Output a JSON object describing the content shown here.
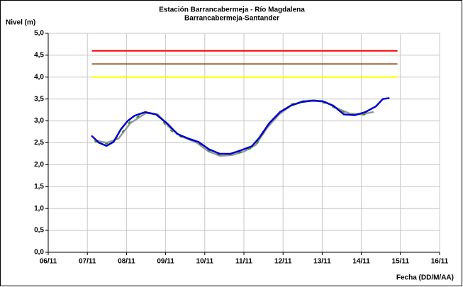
{
  "chart_data": {
    "type": "line",
    "title": [
      "Estación Barrancabermeja - Río Magdalena",
      "Barrancabermeja-Santander"
    ],
    "y_label": "Nivel (m)",
    "x_label": "Fecha (DD/M/AA)",
    "xlim": [
      0,
      10
    ],
    "xticks": [
      {
        "value": 0,
        "label": "06/11"
      },
      {
        "value": 1,
        "label": "07/11"
      },
      {
        "value": 2,
        "label": "08/11"
      },
      {
        "value": 3,
        "label": "09/11"
      },
      {
        "value": 4,
        "label": "10/11"
      },
      {
        "value": 5,
        "label": "11/11"
      },
      {
        "value": 6,
        "label": "12/11"
      },
      {
        "value": 7,
        "label": "13/11"
      },
      {
        "value": 8,
        "label": "14/11"
      },
      {
        "value": 9,
        "label": "15/11"
      },
      {
        "value": 10,
        "label": "16/11"
      }
    ],
    "ylim": [
      0,
      5
    ],
    "yticks": [
      {
        "value": 0,
        "label": "0,0"
      },
      {
        "value": 0.5,
        "label": "0,5"
      },
      {
        "value": 1,
        "label": "1,0"
      },
      {
        "value": 1.5,
        "label": "1,5"
      },
      {
        "value": 2,
        "label": "2,0"
      },
      {
        "value": 2.5,
        "label": "2,5"
      },
      {
        "value": 3,
        "label": "3,0"
      },
      {
        "value": 3.5,
        "label": "3,5"
      },
      {
        "value": 4,
        "label": "4,0"
      },
      {
        "value": 4.5,
        "label": "4,5"
      },
      {
        "value": 5,
        "label": "5,0"
      }
    ],
    "grid": true,
    "series": [
      {
        "color": "#ff0000",
        "x": [
          1.13,
          8.91
        ],
        "values": [
          4.6,
          4.6
        ]
      },
      {
        "color": "#996633",
        "x": [
          1.13,
          8.91
        ],
        "values": [
          4.3,
          4.3
        ]
      },
      {
        "color": "#ffff00",
        "x": [
          1.13,
          8.91
        ],
        "values": [
          4.0,
          4.0
        ]
      },
      {
        "color": "#999999",
        "width": 2.5,
        "x": [
          1.2,
          1.5,
          1.8,
          2.1,
          2.5,
          2.8,
          3.1,
          3.4,
          3.8,
          4.1,
          4.4,
          4.7,
          5.0,
          5.3,
          5.6,
          5.9,
          6.2,
          6.5,
          6.8,
          7.1,
          7.4,
          7.7,
          8.0,
          8.3
        ],
        "values": [
          2.55,
          2.5,
          2.6,
          2.95,
          3.18,
          3.15,
          2.85,
          2.65,
          2.5,
          2.3,
          2.2,
          2.22,
          2.3,
          2.45,
          2.85,
          3.15,
          3.35,
          3.45,
          3.47,
          3.42,
          3.28,
          3.17,
          3.15,
          3.2
        ]
      },
      {
        "color": "#339933",
        "width": 2,
        "dash": true,
        "x": [
          1.2,
          1.5,
          1.8,
          2.1,
          2.5,
          2.8,
          3.1,
          3.4,
          3.8,
          4.1,
          4.4,
          4.7,
          5.0,
          5.3,
          5.6,
          5.9,
          6.2,
          6.5,
          6.8,
          7.1,
          7.4,
          7.7,
          8.0,
          8.3
        ],
        "values": [
          2.53,
          2.48,
          2.62,
          3.0,
          3.2,
          3.13,
          2.8,
          2.63,
          2.52,
          2.32,
          2.22,
          2.24,
          2.3,
          2.43,
          2.88,
          3.18,
          3.38,
          3.45,
          3.47,
          3.4,
          3.26,
          3.15,
          3.13,
          3.18
        ]
      },
      {
        "color": "#0000cc",
        "width": 2.5,
        "x": [
          1.12,
          1.3,
          1.49,
          1.67,
          1.85,
          2.03,
          2.21,
          2.48,
          2.75,
          3.03,
          3.3,
          3.57,
          3.84,
          4.11,
          4.38,
          4.66,
          4.93,
          5.2,
          5.38,
          5.65,
          5.92,
          6.2,
          6.47,
          6.74,
          7.01,
          7.28,
          7.55,
          7.83,
          8.1,
          8.37,
          8.55,
          8.7
        ],
        "values": [
          2.65,
          2.5,
          2.43,
          2.52,
          2.8,
          3.0,
          3.12,
          3.2,
          3.15,
          2.95,
          2.7,
          2.6,
          2.52,
          2.35,
          2.25,
          2.25,
          2.33,
          2.42,
          2.6,
          2.95,
          3.2,
          3.35,
          3.43,
          3.46,
          3.45,
          3.35,
          3.15,
          3.13,
          3.2,
          3.33,
          3.5,
          3.52
        ]
      }
    ]
  }
}
